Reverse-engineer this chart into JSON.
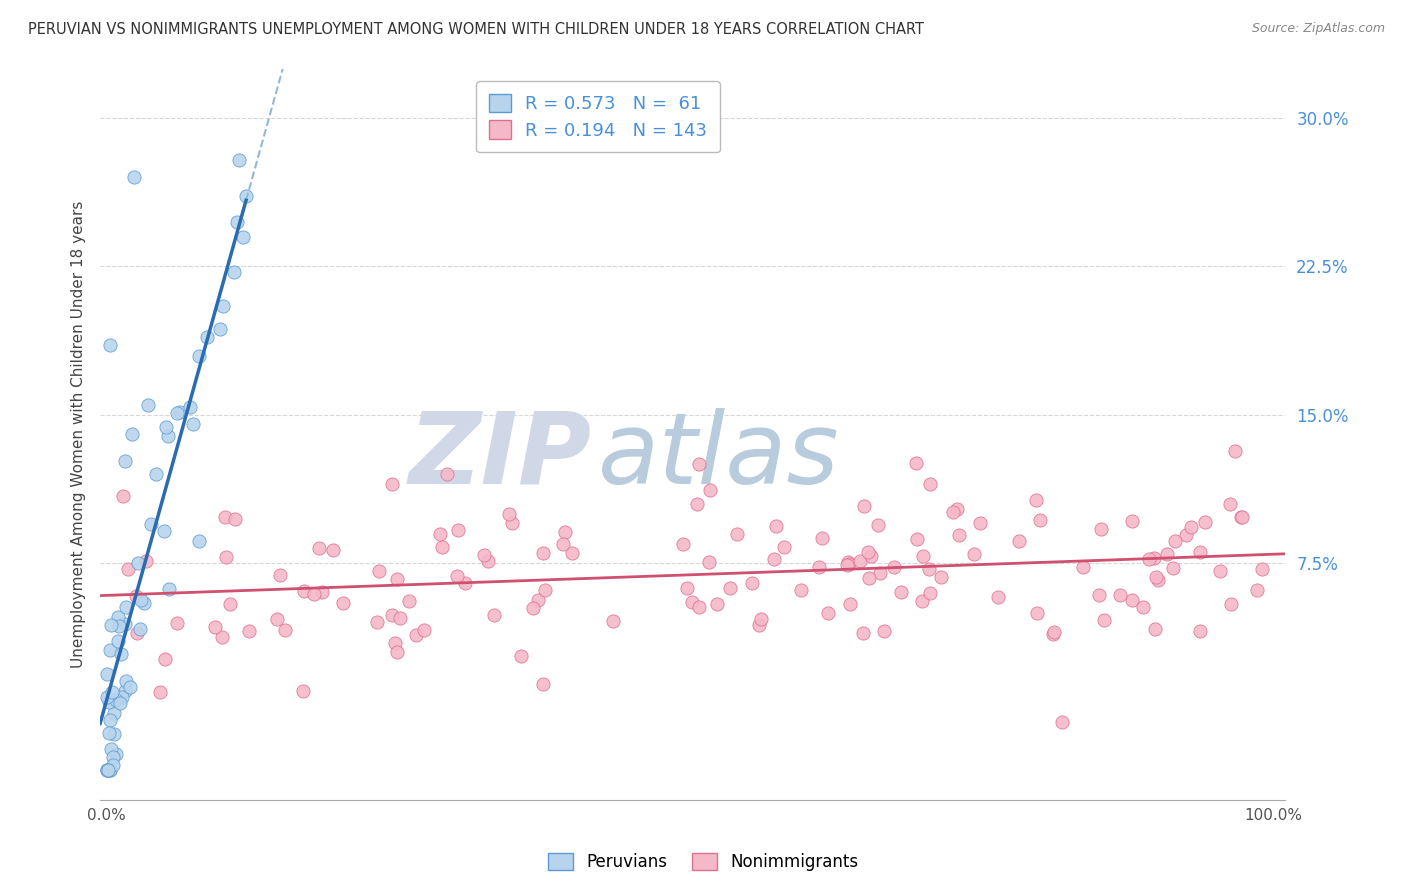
{
  "title": "PERUVIAN VS NONIMMIGRANTS UNEMPLOYMENT AMONG WOMEN WITH CHILDREN UNDER 18 YEARS CORRELATION CHART",
  "source": "Source: ZipAtlas.com",
  "ylabel": "Unemployment Among Women with Children Under 18 years",
  "ytick_labels": [
    "7.5%",
    "15.0%",
    "22.5%",
    "30.0%"
  ],
  "ytick_values": [
    0.075,
    0.15,
    0.225,
    0.3
  ],
  "xlim": [
    -0.005,
    1.01
  ],
  "ylim": [
    -0.045,
    0.325
  ],
  "R_peruvian": 0.573,
  "N_peruvian": 61,
  "R_nonimmigrant": 0.194,
  "N_nonimmigrant": 143,
  "color_peruvian_fill": "#b8d4ec",
  "color_peruvian_edge": "#5b9bd5",
  "color_nonimmigrant_fill": "#f4b8c8",
  "color_nonimmigrant_edge": "#e07090",
  "color_line_peruvian": "#2b6cb0",
  "color_line_peruvian_dash": "#90b8d8",
  "color_line_nonimmigrant": "#d05070",
  "watermark_ZIP_color": "#d0d8e8",
  "watermark_atlas_color": "#b8ccdd",
  "legend_text_color": "#4a90d9",
  "ytick_color": "#4a90d9",
  "title_color": "#333333",
  "background_color": "#ffffff",
  "grid_color": "#cccccc",
  "seed": 42
}
